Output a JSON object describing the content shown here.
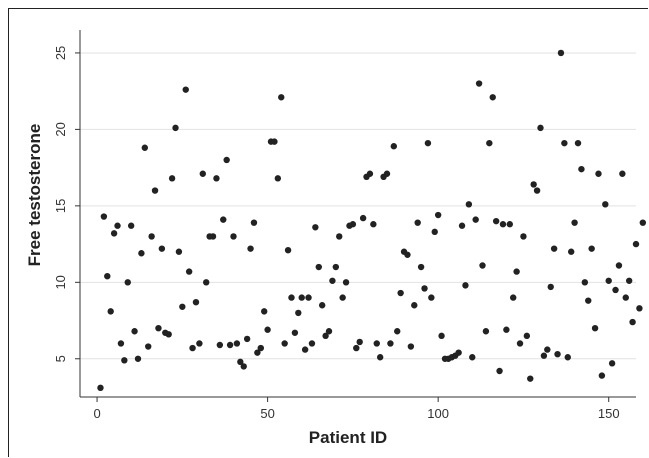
{
  "chart_data": {
    "type": "scatter",
    "title": "",
    "xlabel": "Patient ID",
    "ylabel": "Free testosterone",
    "xlim": [
      -5,
      158
    ],
    "ylim": [
      2.5,
      26.5
    ],
    "xticks": [
      0,
      50,
      100,
      150
    ],
    "yticks": [
      5,
      10,
      15,
      20,
      25
    ],
    "grid": "horizontal",
    "marker_color": "#222222",
    "series": [
      {
        "points": [
          [
            1,
            3.1
          ],
          [
            2,
            14.3
          ],
          [
            3,
            10.4
          ],
          [
            4,
            8.1
          ],
          [
            5,
            13.2
          ],
          [
            6,
            13.7
          ],
          [
            7,
            6.0
          ],
          [
            8,
            4.9
          ],
          [
            9,
            10.0
          ],
          [
            10,
            13.7
          ],
          [
            11,
            6.8
          ],
          [
            12,
            5.0
          ],
          [
            13,
            11.9
          ],
          [
            14,
            18.8
          ],
          [
            15,
            5.8
          ],
          [
            16,
            13.0
          ],
          [
            17,
            16.0
          ],
          [
            18,
            7.0
          ],
          [
            19,
            12.2
          ],
          [
            20,
            6.7
          ],
          [
            21,
            6.6
          ],
          [
            22,
            16.8
          ],
          [
            23,
            20.1
          ],
          [
            24,
            12.0
          ],
          [
            25,
            8.4
          ],
          [
            26,
            22.6
          ],
          [
            27,
            10.7
          ],
          [
            28,
            5.7
          ],
          [
            29,
            8.7
          ],
          [
            30,
            6.0
          ],
          [
            31,
            17.1
          ],
          [
            32,
            10.0
          ],
          [
            33,
            13.0
          ],
          [
            34,
            13.0
          ],
          [
            35,
            16.8
          ],
          [
            36,
            5.9
          ],
          [
            37,
            14.1
          ],
          [
            38,
            18.0
          ],
          [
            39,
            5.9
          ],
          [
            40,
            13.0
          ],
          [
            41,
            6.0
          ],
          [
            42,
            4.8
          ],
          [
            43,
            4.5
          ],
          [
            44,
            6.3
          ],
          [
            45,
            12.2
          ],
          [
            46,
            13.9
          ],
          [
            47,
            5.4
          ],
          [
            48,
            5.7
          ],
          [
            49,
            8.1
          ],
          [
            50,
            6.9
          ],
          [
            51,
            19.2
          ],
          [
            52,
            19.2
          ],
          [
            53,
            16.8
          ],
          [
            54,
            22.1
          ],
          [
            55,
            6.0
          ],
          [
            56,
            12.1
          ],
          [
            57,
            9.0
          ],
          [
            58,
            6.7
          ],
          [
            59,
            8.0
          ],
          [
            60,
            9.0
          ],
          [
            61,
            5.6
          ],
          [
            62,
            9.0
          ],
          [
            63,
            6.0
          ],
          [
            64,
            13.6
          ],
          [
            65,
            11.0
          ],
          [
            66,
            8.5
          ],
          [
            67,
            6.5
          ],
          [
            68,
            6.8
          ],
          [
            69,
            10.1
          ],
          [
            70,
            11.0
          ],
          [
            71,
            13.0
          ],
          [
            72,
            9.0
          ],
          [
            73,
            10.0
          ],
          [
            74,
            13.7
          ],
          [
            75,
            13.8
          ],
          [
            76,
            5.7
          ],
          [
            77,
            6.1
          ],
          [
            78,
            14.2
          ],
          [
            79,
            16.9
          ],
          [
            80,
            17.1
          ],
          [
            81,
            13.8
          ],
          [
            82,
            6.0
          ],
          [
            83,
            5.1
          ],
          [
            84,
            16.9
          ],
          [
            85,
            17.1
          ],
          [
            86,
            6.0
          ],
          [
            87,
            18.9
          ],
          [
            88,
            6.8
          ],
          [
            89,
            9.3
          ],
          [
            90,
            12.0
          ],
          [
            91,
            11.8
          ],
          [
            92,
            5.8
          ],
          [
            93,
            8.5
          ],
          [
            94,
            13.9
          ],
          [
            95,
            11.0
          ],
          [
            96,
            9.6
          ],
          [
            97,
            19.1
          ],
          [
            98,
            9.0
          ],
          [
            99,
            13.3
          ],
          [
            100,
            14.4
          ],
          [
            101,
            6.5
          ],
          [
            102,
            5.0
          ],
          [
            103,
            5.0
          ],
          [
            104,
            5.1
          ],
          [
            105,
            5.2
          ],
          [
            106,
            5.4
          ],
          [
            107,
            13.7
          ],
          [
            108,
            9.8
          ],
          [
            109,
            15.1
          ],
          [
            110,
            5.1
          ],
          [
            111,
            14.1
          ],
          [
            112,
            23.0
          ],
          [
            113,
            11.1
          ],
          [
            114,
            6.8
          ],
          [
            115,
            19.1
          ],
          [
            116,
            22.1
          ],
          [
            117,
            14.0
          ],
          [
            118,
            4.2
          ],
          [
            119,
            13.8
          ],
          [
            120,
            6.9
          ],
          [
            121,
            13.8
          ],
          [
            122,
            9.0
          ],
          [
            123,
            10.7
          ],
          [
            124,
            6.0
          ],
          [
            125,
            13.0
          ],
          [
            126,
            6.5
          ],
          [
            127,
            3.7
          ],
          [
            128,
            16.4
          ],
          [
            129,
            16.0
          ],
          [
            130,
            20.1
          ],
          [
            131,
            5.2
          ],
          [
            132,
            5.6
          ],
          [
            133,
            9.7
          ],
          [
            134,
            12.2
          ],
          [
            135,
            5.3
          ],
          [
            136,
            25.0
          ],
          [
            137,
            19.1
          ],
          [
            138,
            5.1
          ],
          [
            139,
            12.0
          ],
          [
            140,
            13.9
          ],
          [
            141,
            19.1
          ],
          [
            142,
            17.4
          ],
          [
            143,
            10.0
          ],
          [
            144,
            8.8
          ],
          [
            145,
            12.2
          ],
          [
            146,
            7.0
          ],
          [
            147,
            17.1
          ],
          [
            148,
            3.9
          ],
          [
            149,
            15.1
          ],
          [
            150,
            10.1
          ],
          [
            151,
            4.7
          ],
          [
            152,
            9.5
          ],
          [
            153,
            11.1
          ],
          [
            154,
            17.1
          ],
          [
            155,
            9.0
          ],
          [
            156,
            10.1
          ],
          [
            157,
            7.4
          ],
          [
            158,
            12.5
          ],
          [
            159,
            8.3
          ],
          [
            160,
            13.9
          ]
        ]
      }
    ]
  }
}
